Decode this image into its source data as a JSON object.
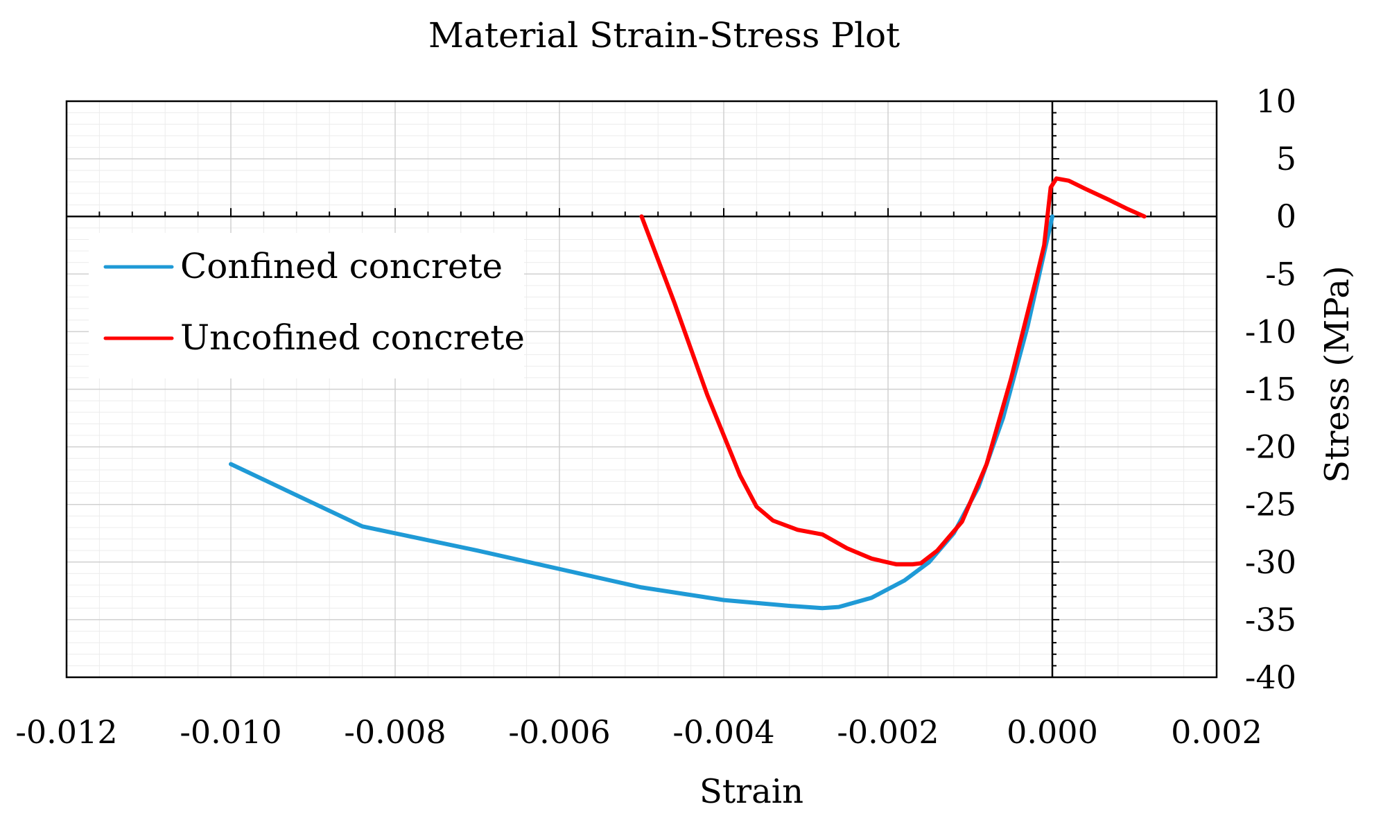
{
  "chart_data": {
    "type": "line",
    "title": "Material Strain-Stress Plot",
    "xlabel": "Strain",
    "ylabel": "Stress (MPa)",
    "xlim": [
      -0.012,
      0.002
    ],
    "ylim": [
      -40,
      10
    ],
    "x_major_ticks": [
      -0.012,
      -0.01,
      -0.008,
      -0.006,
      -0.004,
      -0.002,
      0.0,
      0.002
    ],
    "x_tick_labels": [
      "-0.012",
      "-0.010",
      "-0.008",
      "-0.006",
      "-0.004",
      "-0.002",
      "0.000",
      "0.002"
    ],
    "y_major_ticks": [
      10,
      5,
      0,
      -5,
      -10,
      -15,
      -20,
      -25,
      -30,
      -35,
      -40
    ],
    "y_tick_labels": [
      "10",
      "5",
      "0",
      "-5",
      "-10",
      "-15",
      "-20",
      "-25",
      "-30",
      "-35",
      "-40"
    ],
    "grid": true,
    "legend_position": "top-left",
    "series": [
      {
        "name": "Confined concrete",
        "color": "#1f9ad6",
        "x": [
          -0.01,
          -0.0092,
          -0.0084,
          -0.008,
          -0.007,
          -0.006,
          -0.005,
          -0.004,
          -0.0032,
          -0.0028,
          -0.0026,
          -0.0022,
          -0.0018,
          -0.0015,
          -0.0012,
          -0.0009,
          -0.0006,
          -0.0003,
          0.0
        ],
        "y": [
          -21.5,
          -24.2,
          -26.9,
          -27.5,
          -29.0,
          -30.6,
          -32.2,
          -33.3,
          -33.8,
          -34.0,
          -33.9,
          -33.1,
          -31.6,
          -30.0,
          -27.5,
          -23.5,
          -17.5,
          -9.5,
          0.0
        ]
      },
      {
        "name": "Uncofined concrete",
        "color": "#ff0000",
        "x": [
          -0.005,
          -0.0046,
          -0.0042,
          -0.0038,
          -0.0036,
          -0.0034,
          -0.0031,
          -0.0028,
          -0.0025,
          -0.0022,
          -0.0019,
          -0.0017,
          -0.0016,
          -0.0014,
          -0.0011,
          -0.0008,
          -0.0005,
          -0.0002,
          -0.0001,
          -2e-05,
          5e-05,
          0.0002,
          0.0004,
          0.0007,
          0.0009,
          0.00112
        ],
        "y": [
          0.0,
          -7.5,
          -15.5,
          -22.5,
          -25.2,
          -26.4,
          -27.2,
          -27.6,
          -28.8,
          -29.7,
          -30.2,
          -30.2,
          -30.1,
          -29.0,
          -26.5,
          -21.5,
          -14.0,
          -5.5,
          -2.5,
          2.5,
          3.3,
          3.1,
          2.4,
          1.4,
          0.7,
          0.0
        ]
      }
    ]
  }
}
